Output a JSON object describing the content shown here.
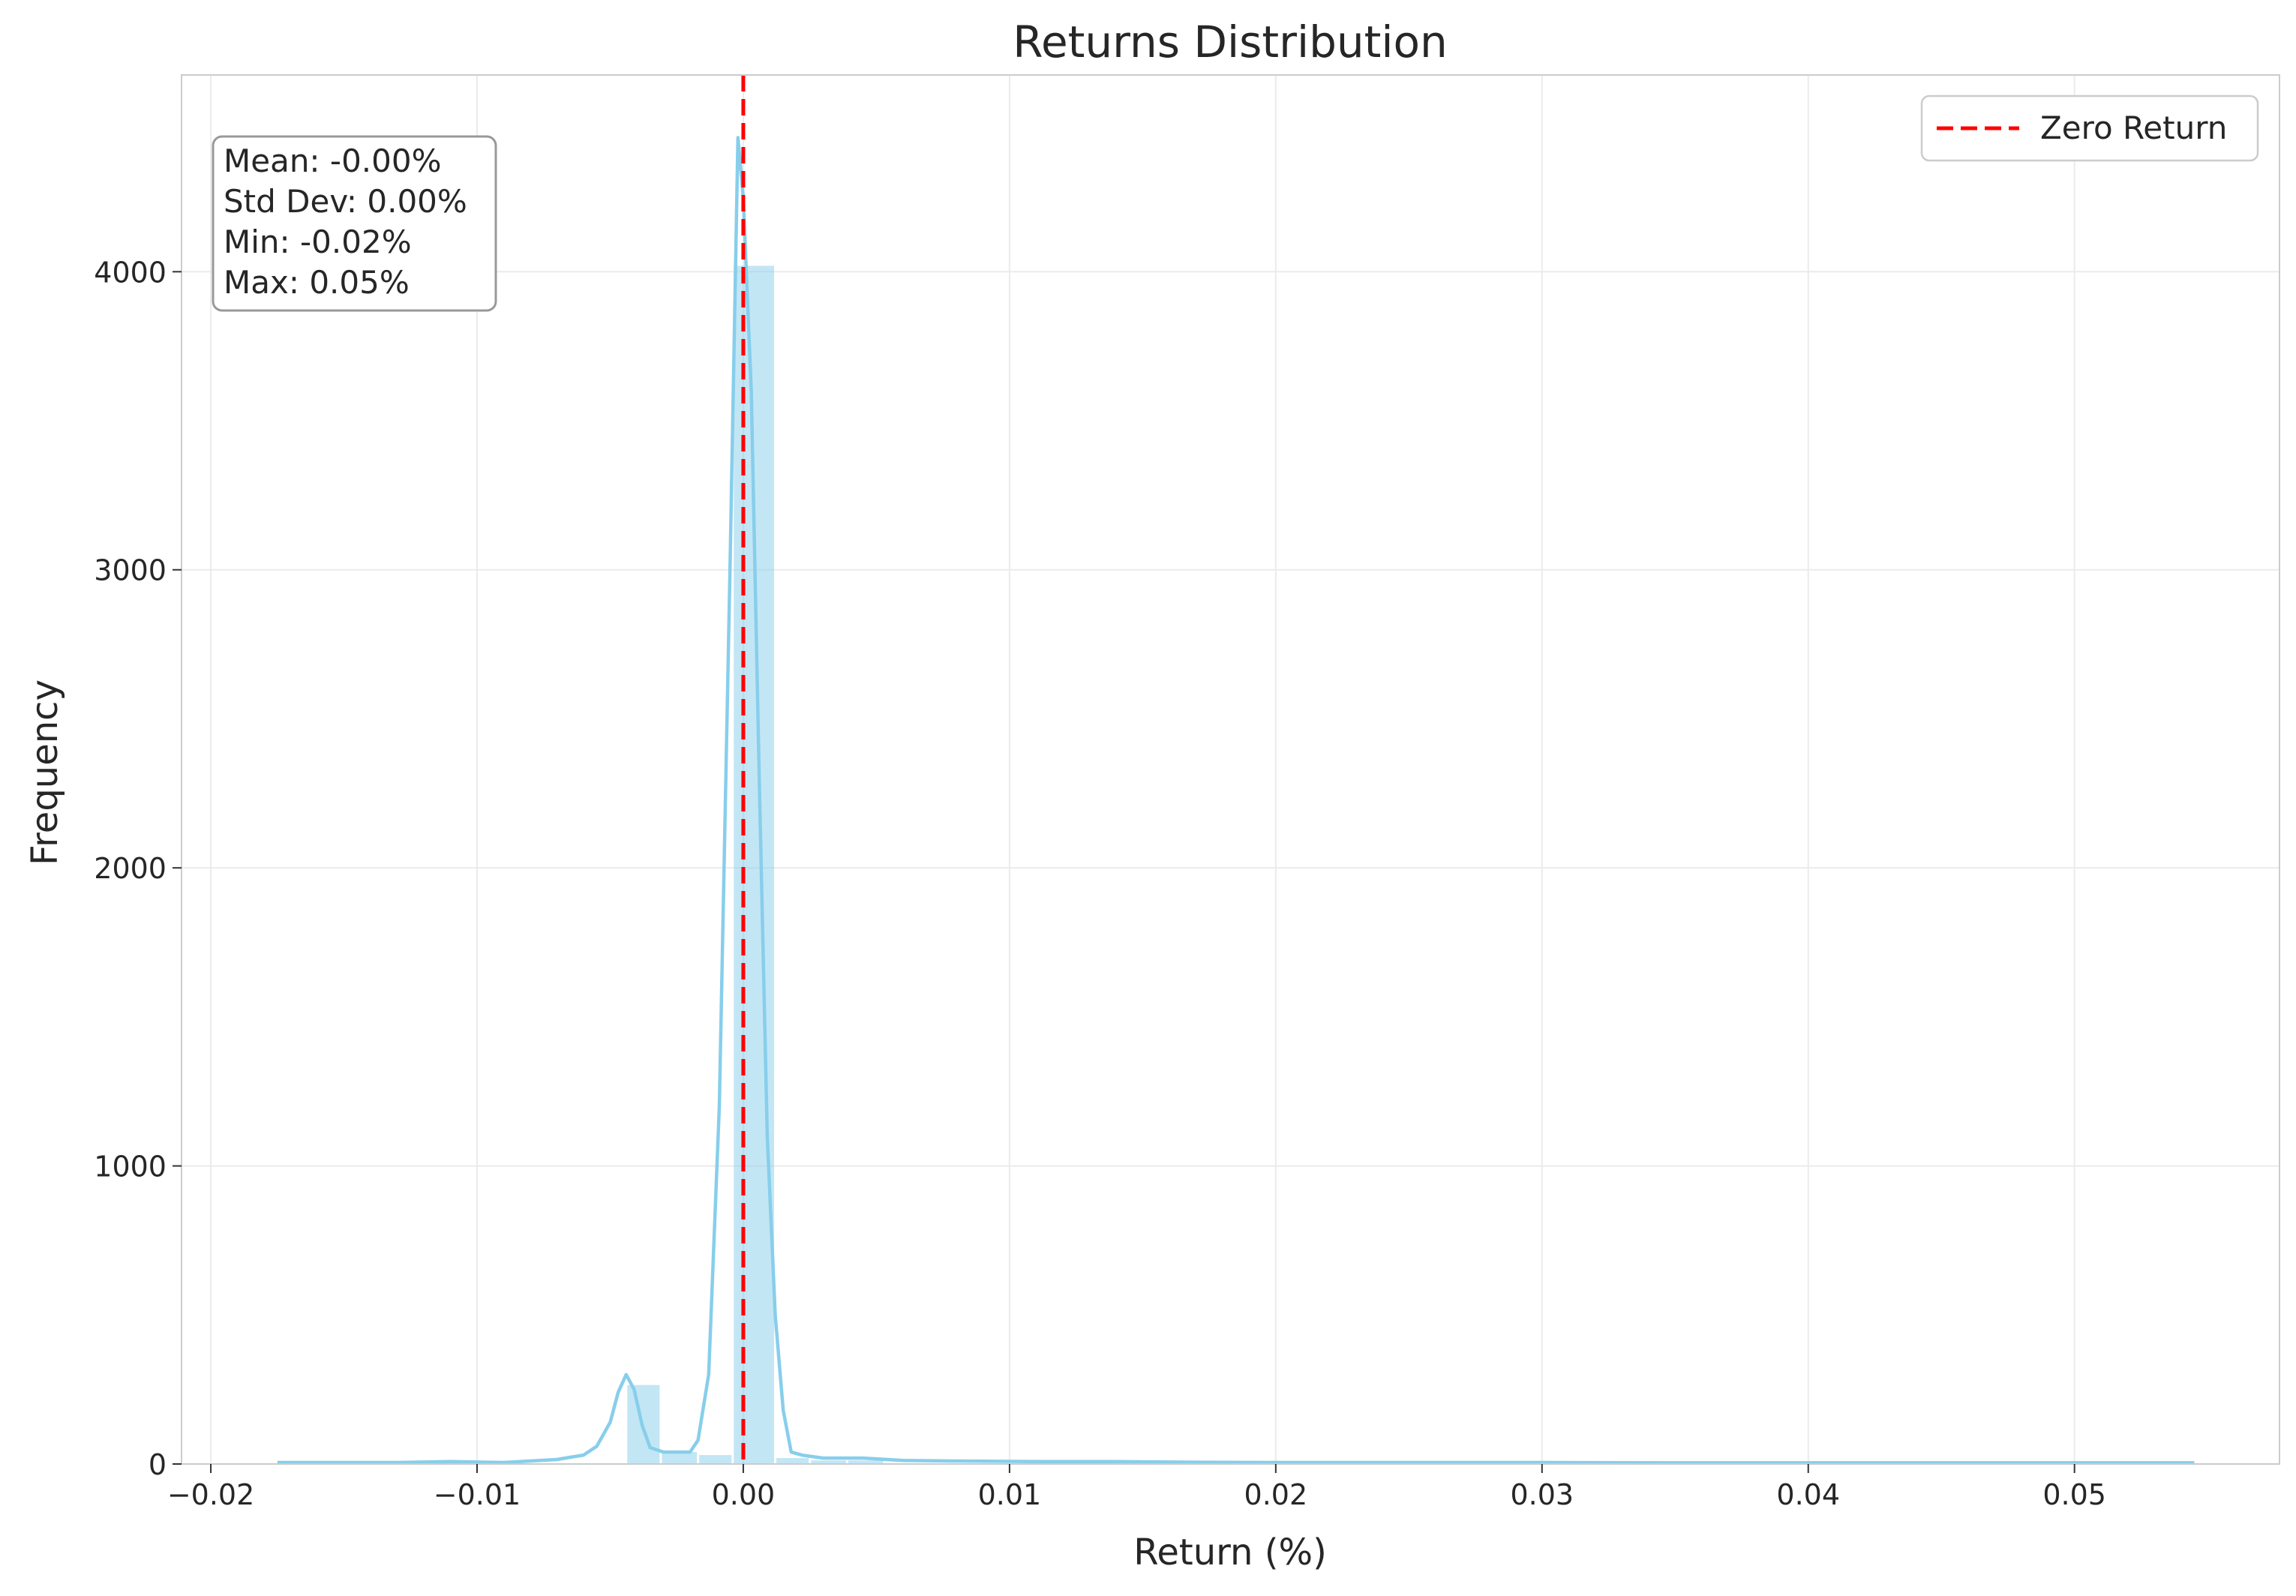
{
  "chart_data": {
    "type": "histogram",
    "title": "Returns Distribution",
    "xlabel": "Return (%)",
    "ylabel": "Frequency",
    "xlim": [
      -0.0211,
      0.0577
    ],
    "ylim": [
      0,
      4660
    ],
    "xticks": [
      -0.02,
      -0.01,
      0.0,
      0.01,
      0.02,
      0.03,
      0.04,
      0.05
    ],
    "xtick_labels": [
      "−0.02",
      "−0.01",
      "0.00",
      "0.01",
      "0.02",
      "0.03",
      "0.04",
      "0.05"
    ],
    "yticks": [
      0,
      1000,
      2000,
      3000,
      4000
    ],
    "ytick_labels": [
      "0",
      "1000",
      "2000",
      "3000",
      "4000"
    ],
    "grid": true,
    "bar_color": "#87CEEB",
    "kde_color": "#87CEEB",
    "reference_line_color": "#FF0000",
    "bins": [
      {
        "x0": -0.0044,
        "x1": -0.0031,
        "count": 265
      },
      {
        "x0": -0.0031,
        "x1": -0.0017,
        "count": 40
      },
      {
        "x0": -0.0017,
        "x1": -0.0004,
        "count": 30
      },
      {
        "x0": -0.0004,
        "x1": 0.0012,
        "count": 4020
      },
      {
        "x0": 0.0012,
        "x1": 0.0025,
        "count": 20
      },
      {
        "x0": 0.0025,
        "x1": 0.0039,
        "count": 12
      },
      {
        "x0": 0.0039,
        "x1": 0.0053,
        "count": 12
      }
    ],
    "kde": {
      "x": [
        -0.0175,
        -0.013,
        -0.011,
        -0.009,
        -0.007,
        -0.006,
        -0.0055,
        -0.005,
        -0.0047,
        -0.0044,
        -0.0041,
        -0.0038,
        -0.0035,
        -0.003,
        -0.0025,
        -0.002,
        -0.0017,
        -0.0013,
        -0.0009,
        -0.0005,
        -0.0002,
        0.0,
        0.0003,
        0.0006,
        0.0009,
        0.0012,
        0.0015,
        0.0018,
        0.0022,
        0.003,
        0.0045,
        0.006,
        0.008,
        0.011,
        0.014,
        0.017,
        0.02,
        0.025,
        0.03,
        0.035,
        0.04,
        0.045,
        0.05,
        0.0545
      ],
      "y": [
        5,
        5,
        8,
        5,
        15,
        30,
        60,
        140,
        240,
        300,
        250,
        130,
        55,
        40,
        40,
        40,
        80,
        300,
        1200,
        3000,
        4450,
        4250,
        3600,
        2300,
        1100,
        500,
        180,
        40,
        30,
        20,
        20,
        12,
        10,
        8,
        8,
        6,
        5,
        5,
        5,
        4,
        4,
        4,
        4,
        4
      ]
    },
    "reference_line": {
      "x": 0.0,
      "label": "Zero Return"
    },
    "stats_box": [
      "Mean: -0.00%",
      "Std Dev: 0.00%",
      "Min: -0.02%",
      "Max: 0.05%"
    ],
    "legend": {
      "position": "top-right",
      "entries": [
        "Zero Return"
      ]
    }
  }
}
